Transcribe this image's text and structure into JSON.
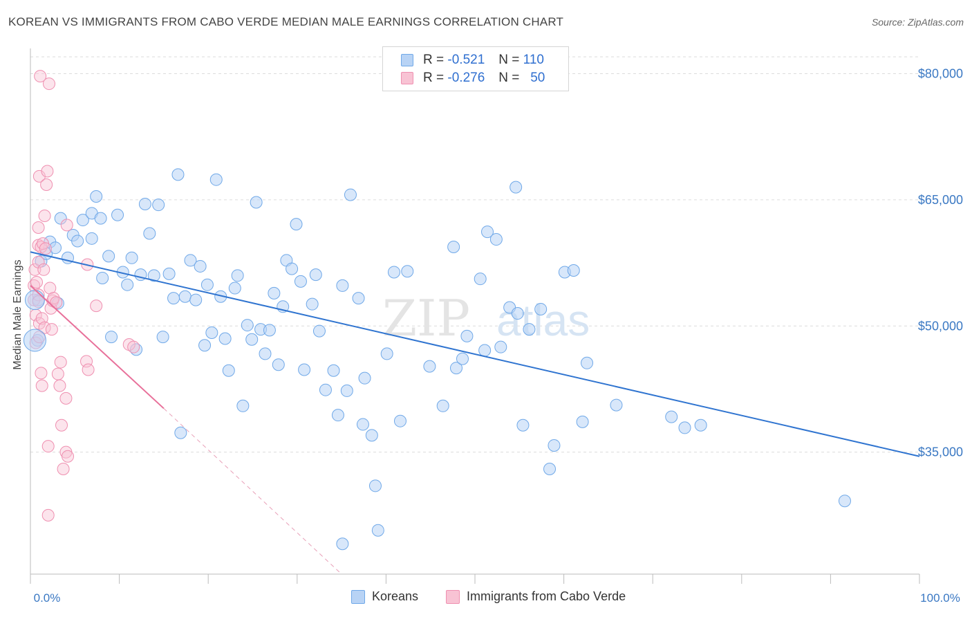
{
  "title": "KOREAN VS IMMIGRANTS FROM CABO VERDE MEDIAN MALE EARNINGS CORRELATION CHART",
  "source": "Source: ZipAtlas.com",
  "watermark": {
    "zip": "ZIP",
    "atlas": "atlas"
  },
  "legend": {
    "rows": [
      {
        "r_label": "R =",
        "r_value": "-0.521",
        "n_label": "N =",
        "n_value": "110",
        "color": "#6fa8e8",
        "fill": "#b8d3f5"
      },
      {
        "r_label": "R =",
        "r_value": "-0.276",
        "n_label": "N =",
        "n_value": "50",
        "color": "#ef8fb0",
        "fill": "#f8c3d4"
      }
    ]
  },
  "bottom_legend": [
    {
      "label": "Koreans",
      "fill": "#b8d3f5",
      "stroke": "#6fa8e8"
    },
    {
      "label": "Immigrants from Cabo Verde",
      "fill": "#f8c3d4",
      "stroke": "#ef8fb0"
    }
  ],
  "chart_data": {
    "type": "scatter",
    "title": "KOREAN VS IMMIGRANTS FROM CABO VERDE MEDIAN MALE EARNINGS CORRELATION CHART",
    "xlabel": "",
    "ylabel": "Median Male Earnings",
    "xlim": [
      0,
      100
    ],
    "ylim": [
      20500,
      83000
    ],
    "x_tick_labels": [
      "0.0%",
      "100.0%"
    ],
    "y_ticks": [
      80000,
      65000,
      50000,
      35000
    ],
    "y_tick_labels": [
      "$80,000",
      "$65,000",
      "$50,000",
      "$35,000"
    ],
    "grid": true,
    "series": [
      {
        "name": "Koreans",
        "color": "#3a78d0",
        "points": [
          [
            0.8,
            48300
          ],
          [
            0.9,
            53100
          ],
          [
            1.2,
            57700
          ],
          [
            1.8,
            58600
          ],
          [
            2.2,
            60000
          ],
          [
            2.8,
            59300
          ],
          [
            3.1,
            52700
          ],
          [
            3.4,
            62800
          ],
          [
            4.2,
            58100
          ],
          [
            4.8,
            60800
          ],
          [
            5.3,
            60100
          ],
          [
            5.9,
            62600
          ],
          [
            6.9,
            63400
          ],
          [
            6.9,
            60400
          ],
          [
            7.4,
            65400
          ],
          [
            7.9,
            62800
          ],
          [
            8.1,
            55700
          ],
          [
            8.8,
            58300
          ],
          [
            9.1,
            48700
          ],
          [
            9.8,
            63200
          ],
          [
            10.4,
            56400
          ],
          [
            10.9,
            54900
          ],
          [
            11.4,
            58100
          ],
          [
            11.9,
            47200
          ],
          [
            12.4,
            56100
          ],
          [
            12.9,
            64500
          ],
          [
            13.4,
            61000
          ],
          [
            13.9,
            56000
          ],
          [
            14.4,
            64400
          ],
          [
            14.9,
            48700
          ],
          [
            15.6,
            56200
          ],
          [
            16.1,
            53300
          ],
          [
            16.6,
            68000
          ],
          [
            16.9,
            37300
          ],
          [
            17.4,
            53500
          ],
          [
            18.0,
            57800
          ],
          [
            18.6,
            53100
          ],
          [
            19.1,
            57100
          ],
          [
            19.6,
            47700
          ],
          [
            19.9,
            54900
          ],
          [
            20.4,
            49200
          ],
          [
            20.9,
            67400
          ],
          [
            21.4,
            53500
          ],
          [
            21.9,
            48500
          ],
          [
            22.3,
            44700
          ],
          [
            23.0,
            54500
          ],
          [
            23.3,
            56000
          ],
          [
            23.9,
            40500
          ],
          [
            24.4,
            50100
          ],
          [
            24.9,
            48400
          ],
          [
            25.4,
            64700
          ],
          [
            25.9,
            49600
          ],
          [
            26.4,
            46700
          ],
          [
            26.9,
            49500
          ],
          [
            27.4,
            53900
          ],
          [
            27.9,
            45400
          ],
          [
            28.4,
            52300
          ],
          [
            28.8,
            57800
          ],
          [
            29.4,
            56800
          ],
          [
            29.9,
            62100
          ],
          [
            30.4,
            55300
          ],
          [
            30.8,
            44800
          ],
          [
            31.7,
            52600
          ],
          [
            32.1,
            56100
          ],
          [
            32.5,
            49400
          ],
          [
            33.2,
            42400
          ],
          [
            34.1,
            44700
          ],
          [
            34.6,
            39400
          ],
          [
            35.1,
            54800
          ],
          [
            35.6,
            42300
          ],
          [
            36.0,
            65600
          ],
          [
            36.9,
            53300
          ],
          [
            37.4,
            38300
          ],
          [
            37.6,
            43800
          ],
          [
            38.4,
            37000
          ],
          [
            38.8,
            31000
          ],
          [
            39.1,
            25700
          ],
          [
            40.1,
            46700
          ],
          [
            40.9,
            56400
          ],
          [
            41.6,
            38700
          ],
          [
            42.4,
            56500
          ],
          [
            44.9,
            45200
          ],
          [
            46.4,
            40500
          ],
          [
            47.6,
            59400
          ],
          [
            47.9,
            45000
          ],
          [
            48.6,
            46100
          ],
          [
            49.1,
            48800
          ],
          [
            50.6,
            55600
          ],
          [
            51.1,
            47100
          ],
          [
            51.4,
            61200
          ],
          [
            52.4,
            60300
          ],
          [
            52.9,
            47500
          ],
          [
            53.9,
            52200
          ],
          [
            54.6,
            66500
          ],
          [
            54.8,
            51500
          ],
          [
            55.4,
            38200
          ],
          [
            56.1,
            49600
          ],
          [
            57.4,
            52000
          ],
          [
            58.4,
            33000
          ],
          [
            58.9,
            35800
          ],
          [
            60.1,
            56400
          ],
          [
            61.1,
            56600
          ],
          [
            62.1,
            38600
          ],
          [
            62.6,
            45600
          ],
          [
            65.9,
            40600
          ],
          [
            72.1,
            39200
          ],
          [
            73.6,
            37900
          ],
          [
            75.4,
            38200
          ],
          [
            91.6,
            29200
          ],
          [
            35.1,
            24100
          ]
        ],
        "trend": {
          "x": [
            0,
            100
          ],
          "y": [
            58800,
            34500
          ]
        }
      },
      {
        "name": "Immigrants from Cabo Verde",
        "color": "#e8709a",
        "points": [
          [
            0.4,
            53100
          ],
          [
            0.4,
            54800
          ],
          [
            0.5,
            56700
          ],
          [
            0.6,
            51300
          ],
          [
            0.6,
            48000
          ],
          [
            0.7,
            55200
          ],
          [
            0.9,
            61700
          ],
          [
            0.9,
            59600
          ],
          [
            0.9,
            57600
          ],
          [
            0.9,
            53700
          ],
          [
            0.9,
            52900
          ],
          [
            1.0,
            50300
          ],
          [
            1.0,
            48700
          ],
          [
            1.0,
            67800
          ],
          [
            1.2,
            44400
          ],
          [
            1.1,
            79700
          ],
          [
            1.2,
            59400
          ],
          [
            1.3,
            42900
          ],
          [
            1.3,
            50900
          ],
          [
            1.4,
            59800
          ],
          [
            1.5,
            56700
          ],
          [
            1.6,
            63100
          ],
          [
            1.6,
            49800
          ],
          [
            1.7,
            59200
          ],
          [
            1.8,
            66800
          ],
          [
            1.9,
            68400
          ],
          [
            2.0,
            35700
          ],
          [
            2.0,
            27500
          ],
          [
            2.1,
            78800
          ],
          [
            2.2,
            54500
          ],
          [
            2.3,
            52100
          ],
          [
            2.4,
            49600
          ],
          [
            2.5,
            53000
          ],
          [
            2.6,
            53300
          ],
          [
            2.9,
            52800
          ],
          [
            3.1,
            44300
          ],
          [
            3.3,
            42900
          ],
          [
            3.4,
            45700
          ],
          [
            3.5,
            38200
          ],
          [
            3.7,
            33000
          ],
          [
            4.0,
            41400
          ],
          [
            4.0,
            35000
          ],
          [
            4.2,
            34500
          ],
          [
            4.1,
            62000
          ],
          [
            6.3,
            45800
          ],
          [
            6.4,
            57300
          ],
          [
            6.5,
            44800
          ],
          [
            7.4,
            52400
          ],
          [
            11.1,
            47800
          ],
          [
            11.6,
            47500
          ]
        ],
        "trend": {
          "x": [
            0,
            15
          ],
          "y": [
            54800,
            40200
          ]
        },
        "trend_dashed": {
          "x": [
            15,
            35
          ],
          "y": [
            40200,
            20500
          ]
        }
      }
    ]
  }
}
